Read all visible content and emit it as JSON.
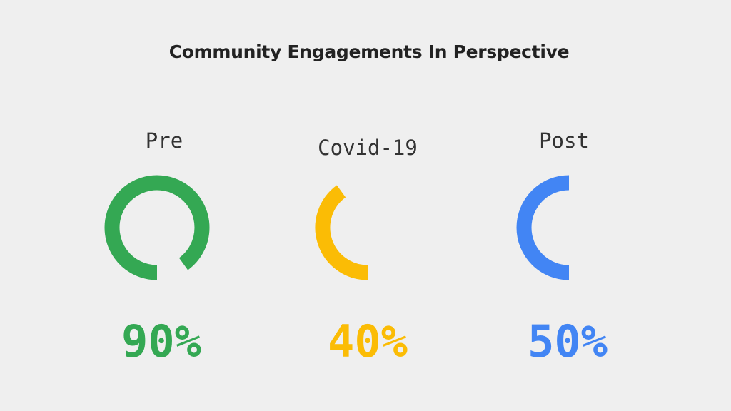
{
  "chart_data": {
    "type": "pie",
    "title": "Community Engagements In Perspective",
    "categories": [
      "Pre",
      "Covid-19",
      "Post"
    ],
    "values": [
      90,
      40,
      50
    ],
    "unit": "%",
    "value_labels": [
      "90%",
      "40%",
      "50%"
    ],
    "colors": [
      "#34a853",
      "#fbbc05",
      "#4285f4"
    ],
    "style": "ring gauges, counter-clockwise from bottom"
  }
}
